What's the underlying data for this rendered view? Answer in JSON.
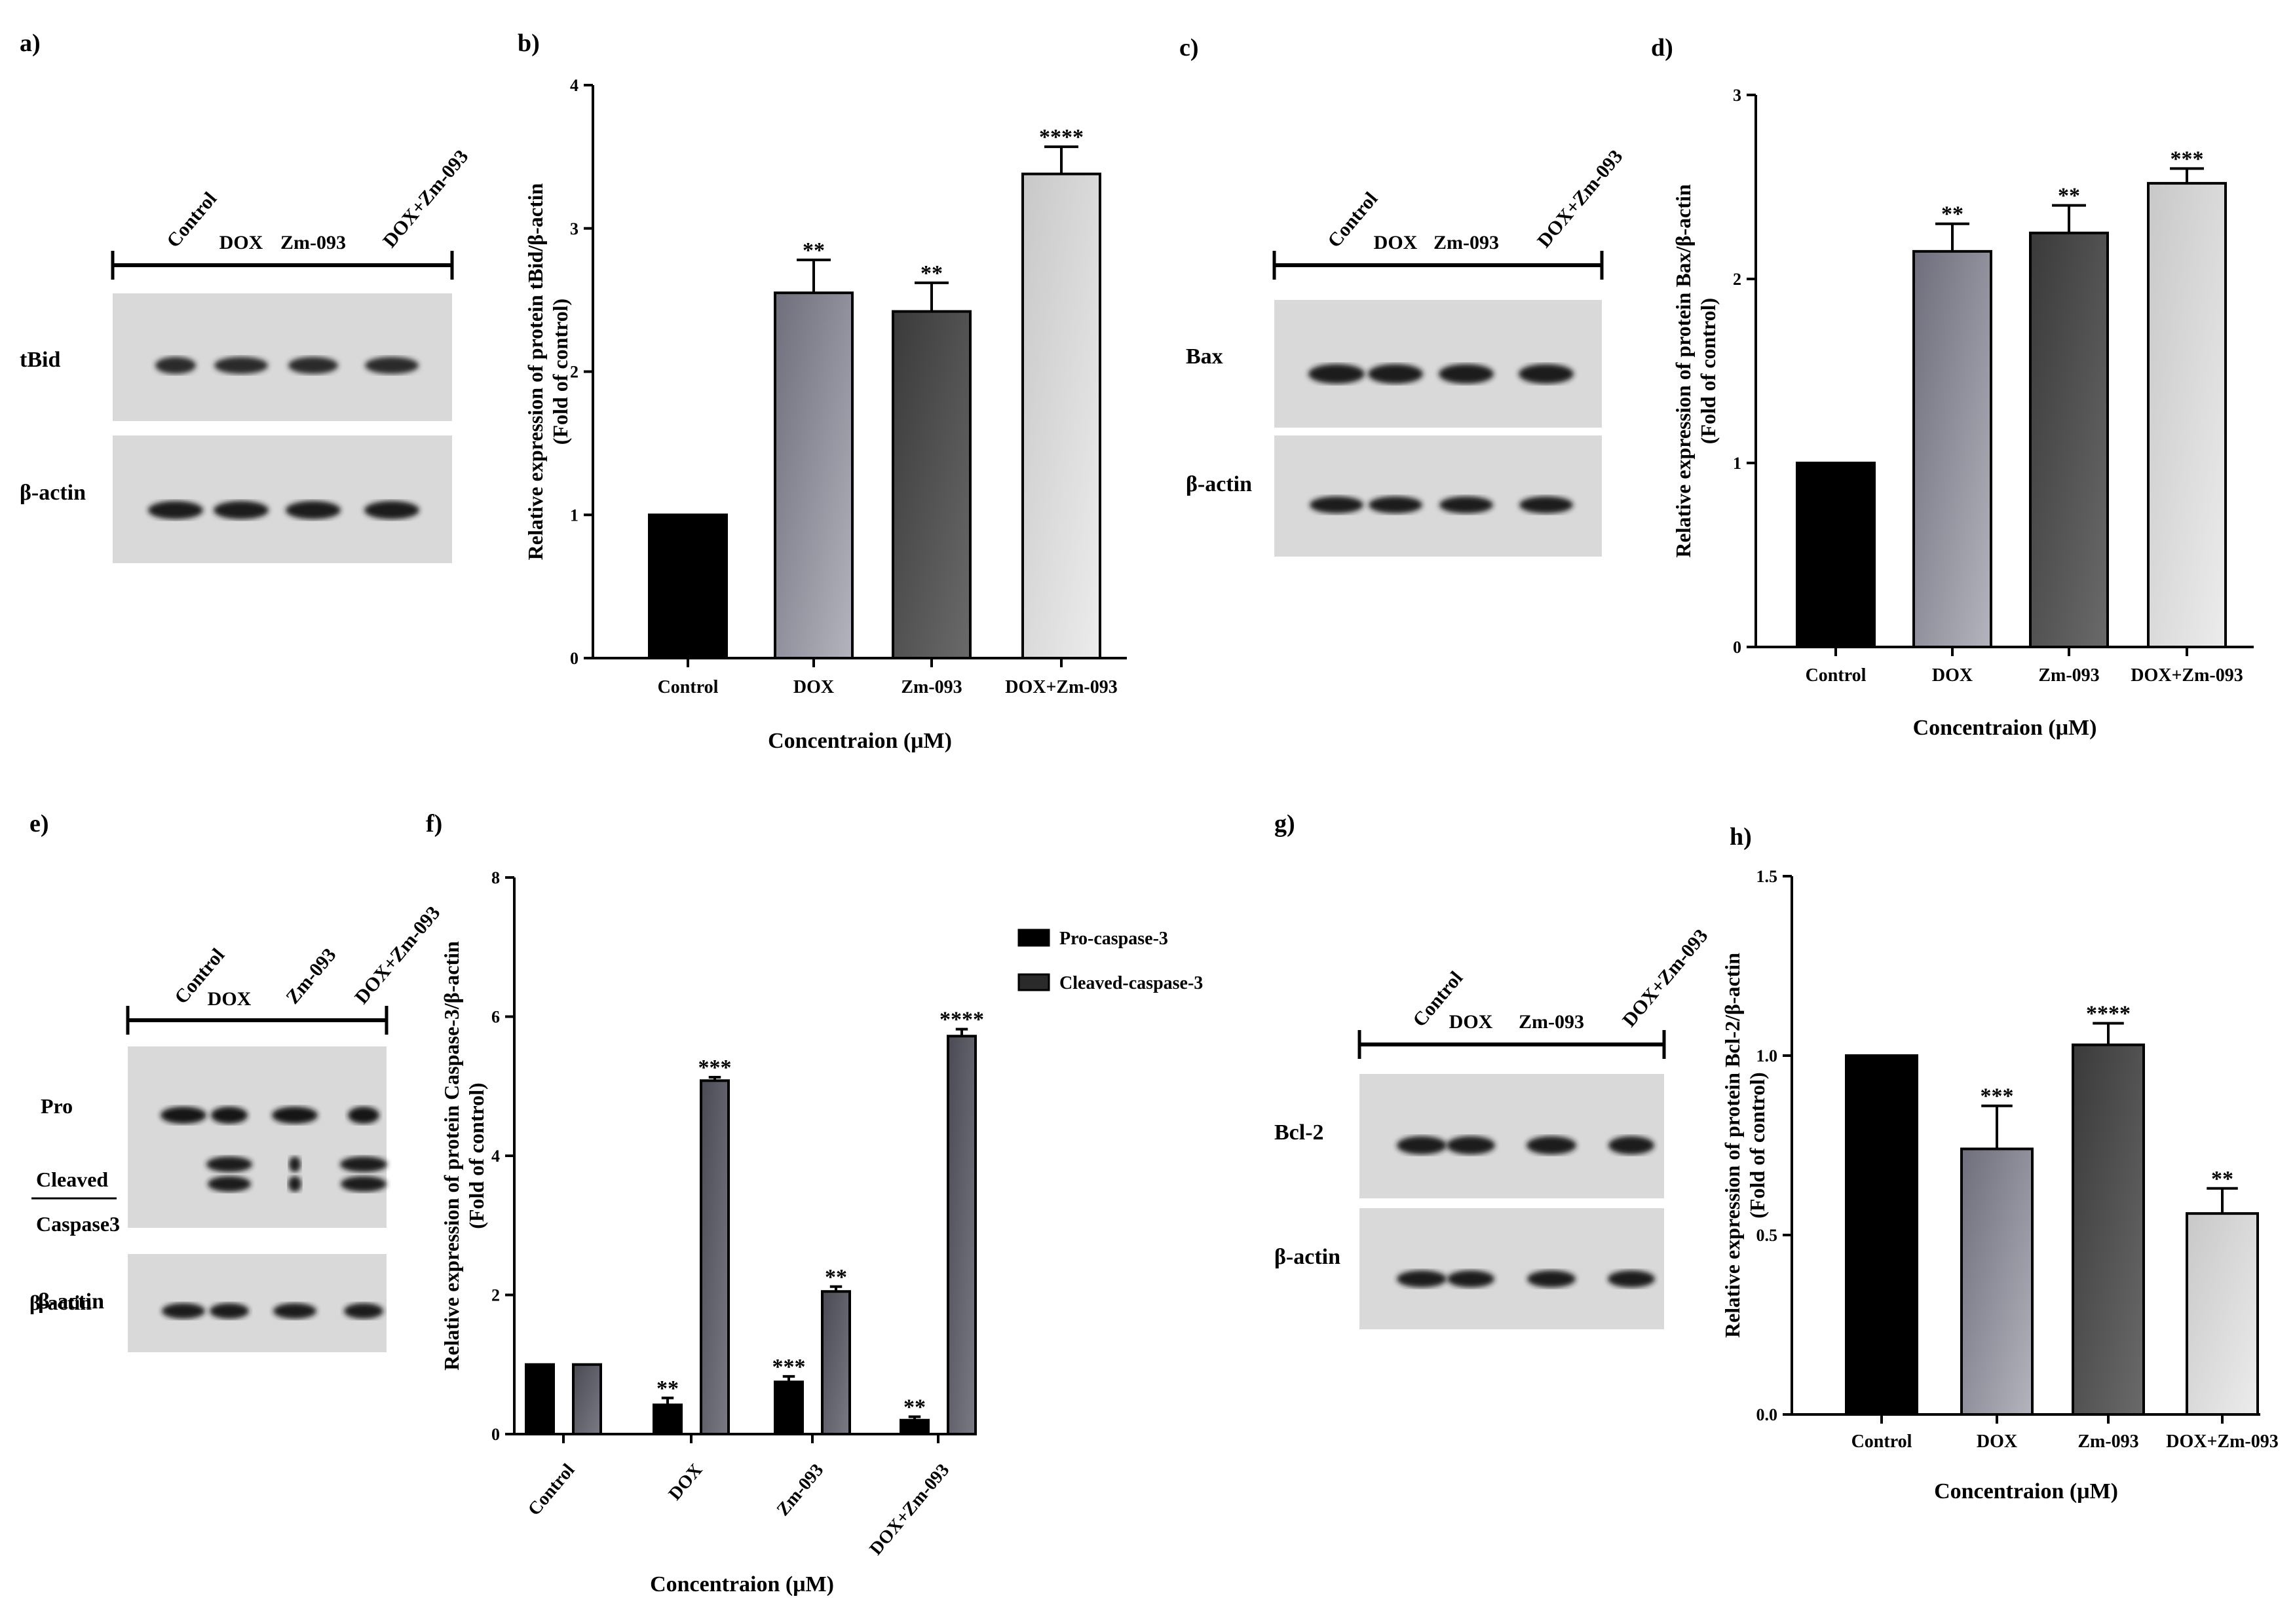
{
  "panel_letters": [
    "a)",
    "b)",
    "c)",
    "d)",
    "e)",
    "f)",
    "g)",
    "h)"
  ],
  "blots": [
    {
      "id": "a",
      "lanes": [
        "Control",
        "DOX",
        "Zm-093",
        "DOX+Zm-093"
      ],
      "rows": [
        {
          "label": "tBid",
          "band_color": "#2a2a2a"
        },
        {
          "label": "β-actin",
          "band_color": "#1e1e1e"
        }
      ]
    },
    {
      "id": "c",
      "lanes": [
        "Control",
        "DOX",
        "Zm-093",
        "DOX+Zm-093"
      ],
      "rows": [
        {
          "label": "Bax",
          "band_color": "#1a1a1a"
        },
        {
          "label": "β-actin",
          "band_color": "#1e1e1e"
        }
      ]
    },
    {
      "id": "e",
      "lanes": [
        "Control",
        "DOX",
        "Zm-093",
        "DOX+Zm-093"
      ],
      "rows": [
        {
          "label": "Pro",
          "band_color": "#141414"
        },
        {
          "label": "Cleaved",
          "band_color": "#1e1e1e"
        },
        {
          "label": "Caspase3",
          "band_color": "#1e1e1e"
        },
        {
          "label": "β-actin",
          "band_color": "#1e1e1e"
        }
      ]
    },
    {
      "id": "g",
      "lanes": [
        "Control",
        "DOX",
        "Zm-093",
        "DOX+Zm-093"
      ],
      "rows": [
        {
          "label": "Bcl-2",
          "band_color": "#1a1a1a"
        },
        {
          "label": "β-actin",
          "band_color": "#1e1e1e"
        }
      ]
    }
  ],
  "chart_data": [
    {
      "id": "b",
      "type": "bar",
      "categories": [
        "Control",
        "DOX",
        "Zm-093",
        "DOX+Zm-093"
      ],
      "values": [
        1.0,
        2.55,
        2.42,
        3.38
      ],
      "errors": [
        0,
        0.23,
        0.2,
        0.19
      ],
      "significance": [
        "",
        "**",
        "**",
        "****"
      ],
      "bar_colors": [
        "#000000",
        "#8a8a96",
        "#4a4a4a",
        "#d8d8d8"
      ],
      "ylabel": "Relative expression of protein tBid/β-actin",
      "ylabel2": "(Fold of control)",
      "xlabel": "Concentraion (μM)",
      "ylim": [
        0,
        4
      ],
      "yticks": [
        "0",
        "1",
        "2",
        "3",
        "4"
      ],
      "grid": false
    },
    {
      "id": "d",
      "type": "bar",
      "categories": [
        "Control",
        "DOX",
        "Zm-093",
        "DOX+Zm-093"
      ],
      "values": [
        1.0,
        2.15,
        2.25,
        2.52
      ],
      "errors": [
        0,
        0.15,
        0.15,
        0.08
      ],
      "significance": [
        "",
        "**",
        "**",
        "***"
      ],
      "bar_colors": [
        "#000000",
        "#8a8a96",
        "#4a4a4a",
        "#d8d8d8"
      ],
      "ylabel": "Relative expression of protein Bax/β-actin",
      "ylabel2": "(Fold of control)",
      "xlabel": "Concentraion (μM)",
      "ylim": [
        0,
        3
      ],
      "yticks": [
        "0",
        "1",
        "2",
        "3"
      ],
      "grid": false
    },
    {
      "id": "f",
      "type": "bar",
      "categories": [
        "Control",
        "DOX",
        "Zm-093",
        "DOX+Zm-093"
      ],
      "series": [
        {
          "name": "Pro-caspase-3",
          "values": [
            1.0,
            0.42,
            0.75,
            0.2
          ],
          "errors": [
            0,
            0.1,
            0.08,
            0.05
          ],
          "significance": [
            "",
            "**",
            "***",
            "**"
          ],
          "color": "#000000"
        },
        {
          "name": "Cleaved-caspase-3",
          "values": [
            1.0,
            5.08,
            2.05,
            5.72
          ],
          "errors": [
            0,
            0.05,
            0.07,
            0.1
          ],
          "significance": [
            "",
            "***",
            "**",
            "****"
          ],
          "color": "#5c5c66"
        }
      ],
      "ylabel": "Relative expression of protein Caspase-3/β-actin",
      "ylabel2": "(Fold of control)",
      "xlabel": "Concentraion (μM)",
      "ylim": [
        0,
        8
      ],
      "yticks": [
        "0",
        "2",
        "4",
        "6",
        "8"
      ],
      "legend_position": "top-right",
      "grid": false
    },
    {
      "id": "h",
      "type": "bar",
      "categories": [
        "Control",
        "DOX",
        "Zm-093",
        "DOX+Zm-093"
      ],
      "values": [
        1.0,
        0.74,
        1.03,
        0.56
      ],
      "errors": [
        0,
        0.12,
        0.06,
        0.07
      ],
      "significance": [
        "",
        "***",
        "****",
        "**"
      ],
      "bar_colors": [
        "#000000",
        "#8a8a96",
        "#4a4a4a",
        "#d8d8d8"
      ],
      "ylabel": "Relative expression of protein Bcl-2/β-actin",
      "ylabel2": "(Fold of control)",
      "xlabel": "Concentraion (μM)",
      "ylim": [
        0,
        1.5
      ],
      "yticks": [
        "0.0",
        "0.5",
        "1.0",
        "1.5"
      ],
      "grid": false
    }
  ]
}
